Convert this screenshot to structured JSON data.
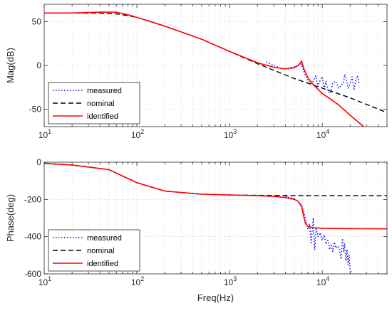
{
  "chart_data": [
    {
      "type": "line",
      "title": "",
      "xlabel": "",
      "ylabel": "Mag(dB)",
      "xscale": "log",
      "xlim": [
        10,
        50000
      ],
      "ylim": [
        -70,
        70
      ],
      "xticks": [
        10,
        100,
        1000,
        10000
      ],
      "xtick_labels": [
        {
          "base": "10",
          "exp": "1"
        },
        {
          "base": "10",
          "exp": "2"
        },
        {
          "base": "10",
          "exp": "3"
        },
        {
          "base": "10",
          "exp": "4"
        }
      ],
      "yticks": [
        -50,
        0,
        50
      ],
      "ytick_labels": [
        "-50",
        "0",
        "50"
      ],
      "grid": true,
      "legend": "bottom-left",
      "series": [
        {
          "name": "measured",
          "color": "#0000ff",
          "style": "dotted",
          "x": [
            2500,
            3000,
            3500,
            4000,
            4500,
            5000,
            5500,
            5800,
            6000,
            6200,
            6500,
            7000,
            7500,
            8000,
            8500,
            9000,
            9500,
            10000,
            10500,
            11000,
            11500,
            12000,
            12500,
            13000,
            14000,
            15000,
            16000,
            17000,
            17500,
            18000,
            19000,
            20000,
            21000,
            22000,
            23000,
            24000,
            25000
          ],
          "values": [
            4,
            0,
            -3,
            -4,
            -4,
            -3,
            0,
            2,
            1,
            -4,
            -10,
            -17,
            -21,
            -18,
            -12,
            -24,
            -17,
            -13,
            -27,
            -18,
            -28,
            -32,
            -30,
            -20,
            -18,
            -26,
            -23,
            -19,
            -10,
            -13,
            -26,
            -20,
            -13,
            -28,
            -18,
            -12,
            -20
          ]
        },
        {
          "name": "nominal",
          "color": "#000000",
          "style": "dashed",
          "x": [
            10,
            20,
            40,
            60,
            80,
            100,
            200,
            500,
            1000,
            2000,
            5000,
            10000,
            20000,
            50000
          ],
          "values": [
            60,
            60,
            60,
            59,
            57,
            55,
            45,
            30,
            16,
            2,
            -15,
            -26,
            -37,
            -54
          ]
        },
        {
          "name": "identified",
          "color": "#ff0000",
          "style": "solid",
          "x": [
            10,
            20,
            40,
            60,
            80,
            100,
            200,
            500,
            1000,
            2000,
            3000,
            4000,
            5000,
            5500,
            6000,
            6300,
            7000,
            8000,
            10000,
            15000,
            20000,
            28000
          ],
          "values": [
            60,
            60,
            61,
            61,
            58,
            55,
            45,
            30,
            16,
            3,
            -2,
            -4,
            -2,
            0,
            5,
            -3,
            -14,
            -22,
            -32,
            -45,
            -57,
            -70
          ]
        }
      ]
    },
    {
      "type": "line",
      "title": "",
      "xlabel": "Freq(Hz)",
      "ylabel": "Phase(deg)",
      "xscale": "log",
      "xlim": [
        10,
        50000
      ],
      "ylim": [
        -600,
        0
      ],
      "xticks": [
        10,
        100,
        1000,
        10000
      ],
      "xtick_labels": [
        {
          "base": "10",
          "exp": "1"
        },
        {
          "base": "10",
          "exp": "2"
        },
        {
          "base": "10",
          "exp": "3"
        },
        {
          "base": "10",
          "exp": "4"
        }
      ],
      "yticks": [
        -600,
        -400,
        -200,
        0
      ],
      "ytick_labels": [
        "-600",
        "-400",
        "-200",
        "0"
      ],
      "grid": true,
      "legend": "bottom-left",
      "series": [
        {
          "name": "measured",
          "color": "#0000ff",
          "style": "dotted",
          "x": [
            4000,
            5000,
            6000,
            6500,
            7000,
            7300,
            7600,
            8000,
            8300,
            8600,
            9000,
            9500,
            10000,
            10500,
            11000,
            11500,
            12000,
            12500,
            13000,
            13500,
            14000,
            15000,
            16000,
            16500,
            17000,
            17500,
            18000,
            18500,
            19000,
            19500,
            20000,
            21000
          ],
          "values": [
            -185,
            -195,
            -230,
            -290,
            -360,
            -330,
            -440,
            -300,
            -470,
            -350,
            -400,
            -380,
            -420,
            -390,
            -440,
            -420,
            -470,
            -440,
            -480,
            -430,
            -460,
            -450,
            -520,
            -410,
            -480,
            -440,
            -530,
            -470,
            -550,
            -500,
            -580,
            -600
          ]
        },
        {
          "name": "nominal",
          "color": "#000000",
          "style": "dashed",
          "x": [
            10,
            20,
            50,
            100,
            200,
            500,
            1000,
            3000,
            10000,
            50000
          ],
          "values": [
            -6,
            -15,
            -40,
            -110,
            -155,
            -172,
            -176,
            -179,
            -180,
            -180
          ]
        },
        {
          "name": "identified",
          "color": "#ff0000",
          "style": "solid",
          "x": [
            10,
            20,
            50,
            100,
            200,
            500,
            1000,
            2000,
            3000,
            4000,
            5000,
            5500,
            6000,
            6300,
            6600,
            7000,
            8000,
            10000,
            20000,
            50000
          ],
          "values": [
            -6,
            -15,
            -40,
            -110,
            -155,
            -172,
            -176,
            -180,
            -184,
            -190,
            -200,
            -210,
            -240,
            -290,
            -330,
            -345,
            -352,
            -355,
            -357,
            -358
          ]
        }
      ]
    }
  ]
}
